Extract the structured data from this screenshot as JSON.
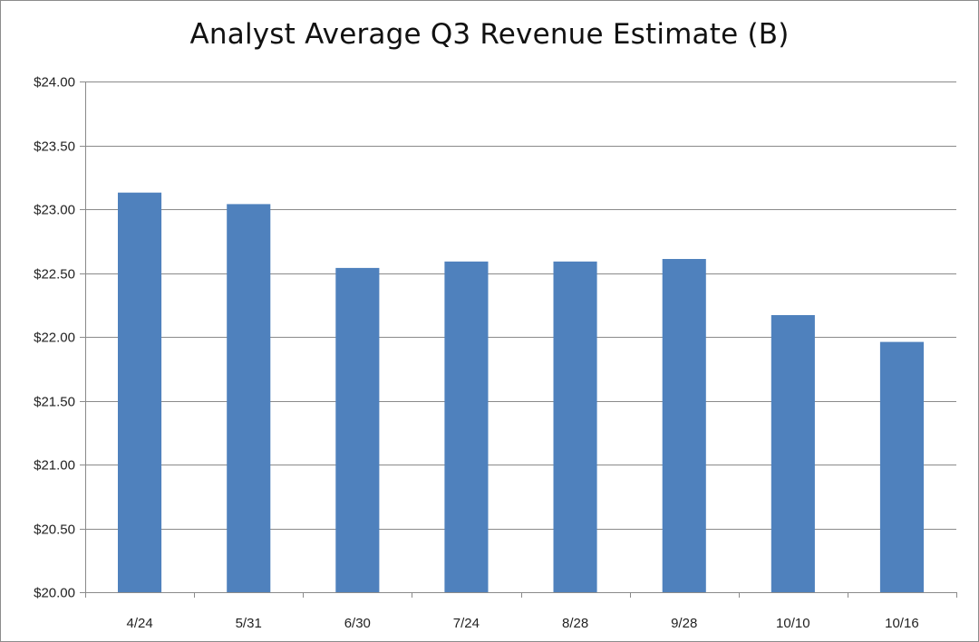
{
  "chart_data": {
    "type": "bar",
    "title": "Analyst Average Q3 Revenue Estimate (B)",
    "xlabel": "",
    "ylabel": "",
    "categories": [
      "4/24",
      "5/31",
      "6/30",
      "7/24",
      "8/28",
      "9/28",
      "10/10",
      "10/16"
    ],
    "series": [
      {
        "name": "Analyst Average Q3 Revenue Estimate (B)",
        "values": [
          23.13,
          23.04,
          22.54,
          22.59,
          22.59,
          22.61,
          22.17,
          21.96
        ],
        "color": "#4f81bd"
      }
    ],
    "ylim": [
      20.0,
      24.0
    ],
    "yticks": [
      20.0,
      20.5,
      21.0,
      21.5,
      22.0,
      22.5,
      23.0,
      23.5,
      24.0
    ],
    "ytick_labels": [
      "$20.00",
      "$20.50",
      "$21.00",
      "$21.50",
      "$22.00",
      "$22.50",
      "$23.00",
      "$23.50",
      "$24.00"
    ],
    "grid": true,
    "legend": "none"
  }
}
